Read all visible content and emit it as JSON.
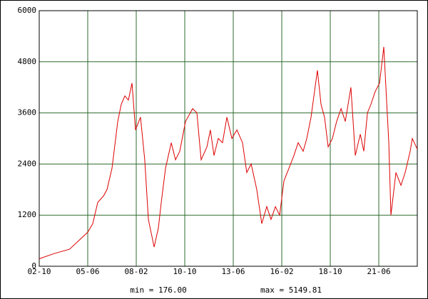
{
  "chart_data": {
    "type": "line",
    "x": [
      0,
      10,
      20,
      26,
      32,
      35.3,
      38.6,
      42.4,
      44.7,
      48,
      51.8,
      54.1,
      56.5,
      58.8,
      61.2,
      63.5,
      66.8,
      69.6,
      72,
      75.8,
      78.6,
      80.5,
      83.3,
      87.1,
      89.9,
      92.7,
      96.5,
      101.2,
      104,
      106.8,
      110.6,
      112.9,
      115.3,
      118.1,
      120.9,
      123.8,
      127.1,
      130.4,
      134.1,
      136.9,
      139.8,
      143.5,
      146.8,
      150.1,
      152.9,
      155.8,
      158.6,
      161.4,
      164.7,
      168,
      170.8,
      174.1,
      176.5,
      179.3,
      183.5,
      185.9,
      188.2,
      190.6,
      193.4,
      196.2,
      199.1,
      201.9,
      205.6,
      208.5,
      211.8,
      214.1,
      216.5,
      218.8,
      221.6,
      224.5,
      227.3,
      230.6,
      232,
      235.3,
      238.6,
      241.4,
      244.7,
      246.1,
      249.4
    ],
    "series": [
      {
        "color": "#dd0000",
        "values": [
          176,
          300,
          400,
          600,
          800,
          1000,
          1500,
          1650,
          1800,
          2300,
          3400,
          3800,
          4000,
          3900,
          4300,
          3200,
          3500,
          2500,
          1100,
          450,
          900,
          1500,
          2300,
          2900,
          2500,
          2700,
          3400,
          3700,
          3600,
          2500,
          2800,
          3200,
          2600,
          3000,
          2900,
          3500,
          3000,
          3200,
          2900,
          2200,
          2400,
          1800,
          1000,
          1400,
          1100,
          1400,
          1200,
          2000,
          2300,
          2600,
          2900,
          2700,
          3000,
          3500,
          4600,
          3800,
          3500,
          2800,
          3000,
          3400,
          3700,
          3400,
          4200,
          2600,
          3100,
          2700,
          3600,
          3800,
          4100,
          4300,
          5149.81,
          2900,
          1200,
          2200,
          1900,
          2200,
          2700,
          3000,
          2750
        ]
      }
    ],
    "xlim": [
      0,
      249.4
    ],
    "xticks": [
      {
        "value": 0,
        "label": "02-10"
      },
      {
        "value": 32,
        "label": "05-06"
      },
      {
        "value": 64,
        "label": "08-02"
      },
      {
        "value": 96,
        "label": "10-10"
      },
      {
        "value": 128,
        "label": "13-06"
      },
      {
        "value": 160,
        "label": "16-02"
      },
      {
        "value": 192,
        "label": "18-10"
      },
      {
        "value": 224,
        "label": "21-06"
      }
    ],
    "ylim": [
      0,
      6000
    ],
    "yticks": [
      0,
      1200,
      2400,
      3600,
      4800,
      6000
    ],
    "grid": true,
    "grid_color": "#2e6b2e",
    "annotations": [
      "min = 176.00",
      "max = 5149.81"
    ]
  }
}
